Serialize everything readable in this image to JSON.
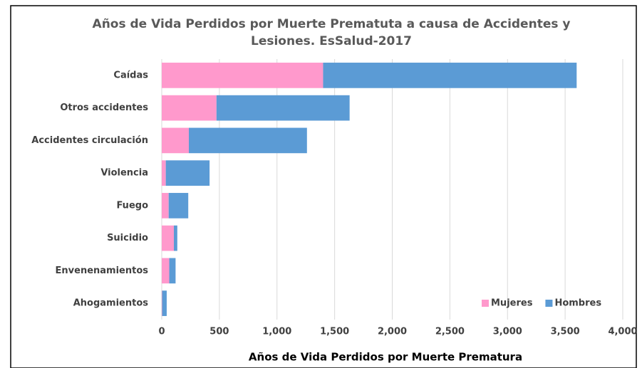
{
  "chart_data": {
    "type": "bar",
    "stacked": true,
    "orientation": "horizontal",
    "title": "Años de Vida  Perdidos por Muerte Prematuta a causa de  Accidentes y Lesiones. EsSalud-2017",
    "x_label": "Años de Vida Perdidos por Muerte Prematura",
    "categories": [
      "Caídas",
      "Otros accidentes",
      "Accidentes circulación",
      "Violencia",
      "Fuego",
      "Suicidio",
      "Envenenamientos",
      "Ahogamientos"
    ],
    "series": [
      {
        "name": "Mujeres",
        "color": "#ff99cc",
        "values": [
          1400,
          475,
          235,
          35,
          60,
          105,
          65,
          3
        ]
      },
      {
        "name": "Hombres",
        "color": "#5b9bd5",
        "values": [
          2200,
          1155,
          1025,
          380,
          170,
          30,
          55,
          40
        ]
      }
    ],
    "xlim": [
      0,
      4000
    ],
    "xticks": [
      0,
      500,
      {
        "value": 1000,
        "label": "1,000"
      },
      {
        "value": 1500,
        "label": "1,500"
      },
      {
        "value": 2000,
        "label": "2,000"
      },
      {
        "value": 2500,
        "label": "2,500"
      },
      {
        "value": 3000,
        "label": "3,000"
      },
      {
        "value": 3500,
        "label": "3,500"
      },
      {
        "value": 4000,
        "label": "4,000"
      }
    ],
    "grid": true,
    "legend": "lower right"
  }
}
